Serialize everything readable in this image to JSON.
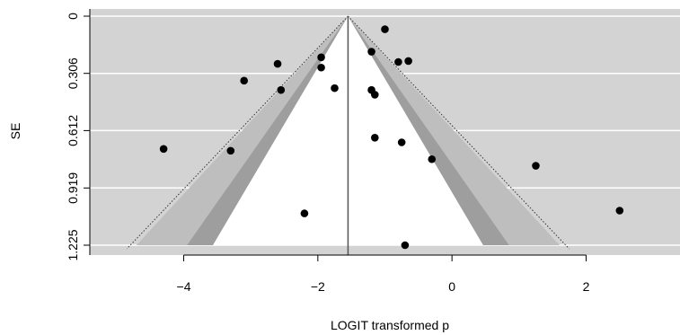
{
  "chart_data": {
    "type": "scatter",
    "variant": "funnel-plot",
    "title": "",
    "xlabel": "LOGIT transformed p",
    "ylabel": "SE",
    "xlim": [
      -5.4,
      3.4
    ],
    "ylim": [
      1.225,
      0
    ],
    "y_axis_reversed": true,
    "xticks": [
      -4,
      -2,
      0,
      2
    ],
    "xtick_labels": [
      "−4",
      "−2",
      "0",
      "2"
    ],
    "yticks": [
      0,
      0.306,
      0.612,
      0.919,
      1.225
    ],
    "ytick_labels": [
      "0",
      "0.306",
      "0.612",
      "0.919",
      "1.225"
    ],
    "grid": true,
    "background_color": "#d3d3d3",
    "pooled_estimate": -1.55,
    "contours": {
      "outer_light": {
        "z": 2.576,
        "color": "#bebebe"
      },
      "middle_dark": {
        "z": 1.96,
        "color": "#9e9e9e"
      },
      "inner_white": {
        "z": 1.645,
        "color": "#ffffff"
      },
      "dotted_limit": {
        "z": 2.65
      }
    },
    "points": [
      {
        "x": -1.0,
        "y": 0.07
      },
      {
        "x": -1.2,
        "y": 0.19
      },
      {
        "x": -2.6,
        "y": 0.255
      },
      {
        "x": -1.95,
        "y": 0.22
      },
      {
        "x": -1.95,
        "y": 0.275
      },
      {
        "x": -0.8,
        "y": 0.245
      },
      {
        "x": -0.65,
        "y": 0.24
      },
      {
        "x": -3.1,
        "y": 0.345
      },
      {
        "x": -2.55,
        "y": 0.395
      },
      {
        "x": -1.75,
        "y": 0.385
      },
      {
        "x": -1.2,
        "y": 0.395
      },
      {
        "x": -1.15,
        "y": 0.42
      },
      {
        "x": -1.15,
        "y": 0.65
      },
      {
        "x": -0.75,
        "y": 0.675
      },
      {
        "x": -4.3,
        "y": 0.71
      },
      {
        "x": -3.3,
        "y": 0.72
      },
      {
        "x": -0.3,
        "y": 0.765
      },
      {
        "x": 1.25,
        "y": 0.8
      },
      {
        "x": -2.2,
        "y": 1.055
      },
      {
        "x": 2.5,
        "y": 1.04
      },
      {
        "x": -0.7,
        "y": 1.225
      }
    ]
  }
}
